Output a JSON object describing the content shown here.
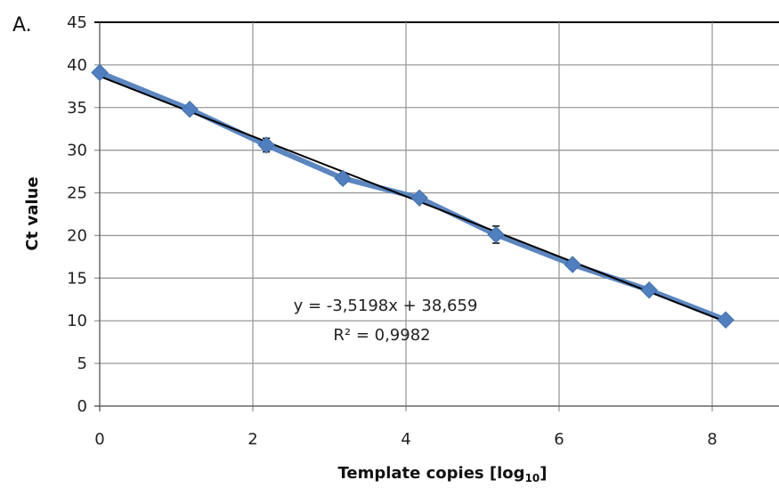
{
  "panel_label": "A.",
  "colors": {
    "series": "#5b86c0",
    "marker": "#4f7fbf",
    "trendline": "#000000",
    "grid": "#9a9a9a",
    "errorbar": "#000000"
  },
  "chart_data": {
    "type": "scatter",
    "xlabel": "Template copies [log",
    "xlabel_subscript": "10",
    "xlabel_suffix": "]",
    "ylabel": "Ct value",
    "xlim": [
      0,
      9
    ],
    "ylim": [
      0,
      45
    ],
    "xticks": [
      0,
      2,
      4,
      6,
      8
    ],
    "yticks": [
      0,
      5,
      10,
      15,
      20,
      25,
      30,
      35,
      40,
      45
    ],
    "grid": true,
    "legend": "none",
    "marker": "diamond",
    "series": [
      {
        "x": [
          0,
          1.176,
          2.176,
          3.176,
          4.176,
          5.176,
          6.176,
          7.176,
          8.176
        ],
        "y": [
          39.1,
          34.8,
          30.6,
          26.7,
          24.4,
          20.1,
          16.6,
          13.6,
          10.1
        ],
        "error": [
          0,
          0,
          0.8,
          0.6,
          0.4,
          1.0,
          0.4,
          0.3,
          0
        ]
      }
    ],
    "trendline": {
      "slope": -3.5198,
      "intercept": 38.659,
      "x_range": [
        0,
        8.176
      ],
      "equation": "y = -3,5198x + 38,659",
      "r_squared": "R² = 0,9982"
    }
  }
}
